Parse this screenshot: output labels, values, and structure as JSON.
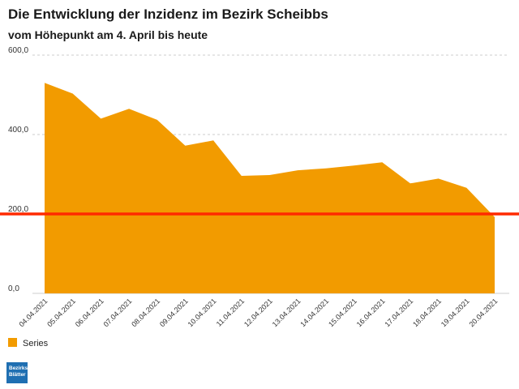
{
  "header": {
    "title": "Die Entwicklung der Inzidenz im Bezirk Scheibbs",
    "subtitle": "vom Höhepunkt am 4. April bis heute"
  },
  "logo": {
    "line1": "Bezirks",
    "line2": "Blätter"
  },
  "colors": {
    "area": "#f29b00",
    "reference_line": "#ff2a00",
    "grid": "#cccccc"
  },
  "chart_data": {
    "type": "area",
    "title": "Die Entwicklung der Inzidenz im Bezirk Scheibbs",
    "subtitle": "vom Höhepunkt am 4. April bis heute",
    "categories": [
      "04.04.2021",
      "05.04.2021",
      "06.04.2021",
      "07.04.2021",
      "08.04.2021",
      "09.04.2021",
      "10.04.2021",
      "11.04.2021",
      "12.04.2021",
      "13.04.2021",
      "14.04.2021",
      "15.04.2021",
      "16.04.2021",
      "17.04.2021",
      "18.04.2021",
      "19.04.2021",
      "20.04.2021"
    ],
    "series": [
      {
        "name": "Series",
        "values": [
          530,
          503,
          440,
          465,
          437,
          372,
          385,
          296,
          298,
          310,
          315,
          322,
          330,
          277,
          289,
          266,
          192
        ]
      }
    ],
    "yticks": [
      {
        "value": 0,
        "label": "0,0"
      },
      {
        "value": 200,
        "label": "200,0"
      },
      {
        "value": 400,
        "label": "400,0"
      },
      {
        "value": 600,
        "label": "600,0"
      }
    ],
    "ylim": [
      0,
      600
    ],
    "reference_line": 200,
    "grid": true,
    "legend": "bottom-left"
  }
}
